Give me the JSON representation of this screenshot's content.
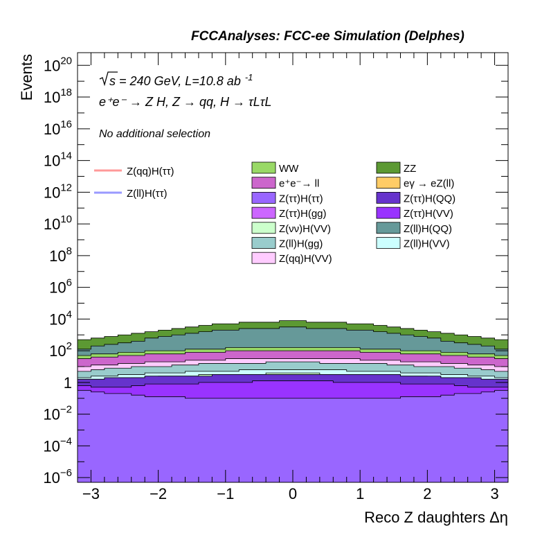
{
  "chart_data": {
    "type": "area",
    "title": "FCCAnalyses: FCC-ee Simulation (Delphes)",
    "xlabel": "Reco Z daughters Δη",
    "ylabel": "Events",
    "x_ticks": [
      "−3",
      "−2",
      "−1",
      "0",
      "1",
      "2",
      "3"
    ],
    "y_ticks": [
      {
        "base": "10",
        "exp": "−6"
      },
      {
        "base": "10",
        "exp": "−4"
      },
      {
        "base": "10",
        "exp": "−2"
      },
      {
        "base": "1",
        "exp": ""
      },
      {
        "base": "10",
        "exp": "2"
      },
      {
        "base": "10",
        "exp": "4"
      },
      {
        "base": "10",
        "exp": "6"
      },
      {
        "base": "10",
        "exp": "8"
      },
      {
        "base": "10",
        "exp": "10"
      },
      {
        "base": "10",
        "exp": "12"
      },
      {
        "base": "10",
        "exp": "14"
      },
      {
        "base": "10",
        "exp": "16"
      },
      {
        "base": "10",
        "exp": "18"
      },
      {
        "base": "10",
        "exp": "20"
      }
    ],
    "x_range": [
      -3.2,
      3.2
    ],
    "y_range_log10": [
      -6.3,
      20.8
    ],
    "y_scale": "log",
    "x_bins": 32,
    "annotations": {
      "energy_sqrt": "s",
      "energy_rest": "= 240 GeV, L=10.8 ab",
      "lumi_exp": "-1",
      "process": "e⁺e⁻ → Z H, Z → qq, H → τLτL",
      "selection": "No additional selection"
    },
    "signals": [
      {
        "name": "Z(qq)H(ττ)",
        "color": "#ff9999"
      },
      {
        "name": "Z(ll)H(ττ)",
        "color": "#9999ff"
      }
    ],
    "legend": [
      {
        "name": "WW",
        "color": "#99d966"
      },
      {
        "name": "ZZ",
        "color": "#5c9933"
      },
      {
        "name": "e⁺e⁻→ ll",
        "color": "#cc66cc"
      },
      {
        "name": "eγ → eZ(ll)",
        "color": "#ffcc66"
      },
      {
        "name": "Z(ττ)H(ττ)",
        "color": "#9966ff"
      },
      {
        "name": "Z(ττ)H(QQ)",
        "color": "#6633cc"
      },
      {
        "name": "Z(ττ)H(gg)",
        "color": "#cc66ff"
      },
      {
        "name": "Z(ττ)H(VV)",
        "color": "#9933ff"
      },
      {
        "name": "Z(νν)H(VV)",
        "color": "#ccffcc"
      },
      {
        "name": "Z(ll)H(QQ)",
        "color": "#669999"
      },
      {
        "name": "Z(ll)H(gg)",
        "color": "#99cccc"
      },
      {
        "name": "Z(ll)H(VV)",
        "color": "#ccffff"
      },
      {
        "name": "Z(qq)H(VV)",
        "color": "#ffccff"
      }
    ],
    "stack_order": [
      "Z(ττ)H(ττ)",
      "Z(ττ)H(gg)",
      "Z(ττ)H(VV)",
      "Z(ττ)H(QQ)",
      "Z(νν)H(VV)",
      "eγ → eZ(ll)",
      "Z(ll)H(VV)",
      "Z(ll)H(gg)",
      "Z(qq)H(VV)",
      "e⁺e⁻→ ll",
      "WW",
      "Z(ll)H(QQ)",
      "ZZ"
    ],
    "stack_tops_log10": {
      "Z(ττ)H(ττ)": [
        -0.5,
        -0.6,
        -0.7,
        -0.7,
        -0.8,
        -0.9,
        -0.9,
        -0.9,
        -1.0,
        -1.0,
        -1.0,
        -1.0,
        -1.0,
        -1.0,
        -1.0,
        -1.0,
        -1.0,
        -1.0,
        -1.0,
        -1.0,
        -1.0,
        -1.0,
        -1.0,
        -1.0,
        -0.9,
        -0.9,
        -0.9,
        -0.8,
        -0.7,
        -0.7,
        -0.6,
        -0.5
      ],
      "Z(ττ)H(gg)": [
        -6.5,
        -6.5,
        -6.5,
        -6.5,
        -6.5,
        -6.5,
        -6.5,
        -6.5,
        -2.0,
        -2.0,
        -6.5,
        -6.5,
        -6.5,
        -6.5,
        -6.5,
        -6.5,
        -2.0,
        -2.0,
        -2.0,
        -2.0,
        -2.0,
        -2.0,
        -2.0,
        -2.0,
        -2.0,
        -2.0,
        -2.0,
        -2.0,
        -2.0,
        -2.0,
        -2.0,
        -2.0
      ],
      "Z(ττ)H(VV)": [
        -0.2,
        -0.3,
        -0.3,
        -0.3,
        -0.2,
        -0.1,
        -0.1,
        -0.1,
        -0.1,
        0.0,
        0.0,
        0.0,
        0.0,
        0.1,
        0.1,
        0.1,
        0.1,
        0.1,
        0.1,
        0.0,
        0.0,
        0.0,
        0.0,
        0.0,
        -0.1,
        -0.1,
        -0.1,
        -0.1,
        -0.2,
        -0.3,
        -0.3,
        -0.3
      ],
      "Z(ττ)H(QQ)": [
        0.2,
        0.2,
        0.3,
        0.3,
        0.3,
        0.4,
        0.4,
        0.4,
        0.4,
        0.4,
        0.5,
        0.5,
        0.5,
        0.5,
        0.5,
        0.5,
        0.5,
        0.5,
        0.5,
        0.5,
        0.5,
        0.5,
        0.5,
        0.5,
        0.4,
        0.4,
        0.4,
        0.3,
        0.3,
        0.3,
        0.2,
        0.2
      ],
      "Z(νν)H(VV)": [
        0.0,
        0.1,
        0.2,
        0.2,
        0.3,
        0.3,
        0.4,
        0.4,
        0.4,
        0.5,
        0.5,
        0.5,
        0.5,
        0.5,
        0.6,
        0.6,
        0.6,
        0.6,
        0.5,
        0.5,
        0.5,
        0.5,
        0.5,
        0.4,
        0.4,
        0.4,
        0.3,
        0.3,
        0.2,
        0.2,
        0.1,
        0.0
      ],
      "eγ → eZ(ll)": [
        0.2,
        0.2,
        0.3,
        0.3,
        0.3,
        0.4,
        0.4,
        0.4,
        0.4,
        0.5,
        0.5,
        0.5,
        0.5,
        0.5,
        0.5,
        0.5,
        0.5,
        0.5,
        0.5,
        0.5,
        0.5,
        0.5,
        0.5,
        0.5,
        0.4,
        0.4,
        0.4,
        0.3,
        0.3,
        0.3,
        0.2,
        0.2
      ],
      "Z(ll)H(VV)": [
        0.3,
        0.4,
        0.4,
        0.5,
        0.5,
        0.6,
        0.6,
        0.6,
        0.7,
        0.7,
        0.7,
        0.7,
        0.8,
        0.8,
        0.8,
        0.8,
        0.8,
        0.8,
        0.8,
        0.8,
        0.7,
        0.7,
        0.7,
        0.7,
        0.6,
        0.6,
        0.6,
        0.5,
        0.5,
        0.4,
        0.4,
        0.3
      ],
      "Z(ll)H(gg)": [
        0.7,
        0.8,
        0.9,
        0.9,
        1.0,
        1.0,
        1.0,
        1.1,
        1.1,
        1.2,
        1.2,
        1.2,
        1.2,
        1.2,
        1.3,
        1.3,
        1.3,
        1.3,
        1.2,
        1.2,
        1.2,
        1.2,
        1.2,
        1.1,
        1.1,
        1.0,
        1.0,
        1.0,
        0.9,
        0.9,
        0.8,
        0.7
      ],
      "Z(qq)H(VV)": [
        1.0,
        1.1,
        1.1,
        1.2,
        1.2,
        1.3,
        1.3,
        1.3,
        1.4,
        1.4,
        1.4,
        1.5,
        1.5,
        1.5,
        1.5,
        1.5,
        1.5,
        1.5,
        1.5,
        1.5,
        1.5,
        1.4,
        1.4,
        1.4,
        1.3,
        1.3,
        1.3,
        1.2,
        1.2,
        1.1,
        1.1,
        1.0
      ],
      "e⁺e⁻→ ll": [
        1.5,
        1.6,
        1.6,
        1.7,
        1.7,
        1.8,
        1.8,
        1.8,
        1.9,
        1.9,
        1.9,
        2.0,
        2.0,
        2.0,
        2.0,
        2.0,
        2.0,
        2.0,
        2.0,
        2.0,
        2.0,
        1.9,
        1.9,
        1.9,
        1.8,
        1.8,
        1.8,
        1.7,
        1.7,
        1.6,
        1.6,
        1.5
      ],
      "WW": [
        1.7,
        1.8,
        1.8,
        1.9,
        1.9,
        2.0,
        2.0,
        2.0,
        2.1,
        2.1,
        2.1,
        2.2,
        2.2,
        2.2,
        2.2,
        2.2,
        2.2,
        2.2,
        2.2,
        2.2,
        2.2,
        2.1,
        2.1,
        2.1,
        2.0,
        2.0,
        2.0,
        1.9,
        1.9,
        1.8,
        1.8,
        1.7
      ],
      "Z(ll)H(QQ)": [
        2.1,
        2.3,
        2.4,
        2.5,
        2.6,
        2.8,
        2.9,
        3.0,
        3.1,
        3.2,
        3.3,
        3.3,
        3.4,
        3.4,
        3.4,
        3.5,
        3.5,
        3.4,
        3.4,
        3.4,
        3.3,
        3.3,
        3.2,
        3.1,
        3.0,
        2.9,
        2.8,
        2.6,
        2.5,
        2.4,
        2.3,
        2.1
      ],
      "ZZ": [
        2.7,
        2.8,
        2.9,
        3.0,
        3.1,
        3.2,
        3.3,
        3.4,
        3.5,
        3.6,
        3.7,
        3.7,
        3.8,
        3.8,
        3.8,
        3.9,
        3.9,
        3.8,
        3.8,
        3.8,
        3.7,
        3.7,
        3.6,
        3.5,
        3.4,
        3.3,
        3.2,
        3.1,
        3.0,
        2.9,
        2.8,
        2.7
      ]
    }
  }
}
